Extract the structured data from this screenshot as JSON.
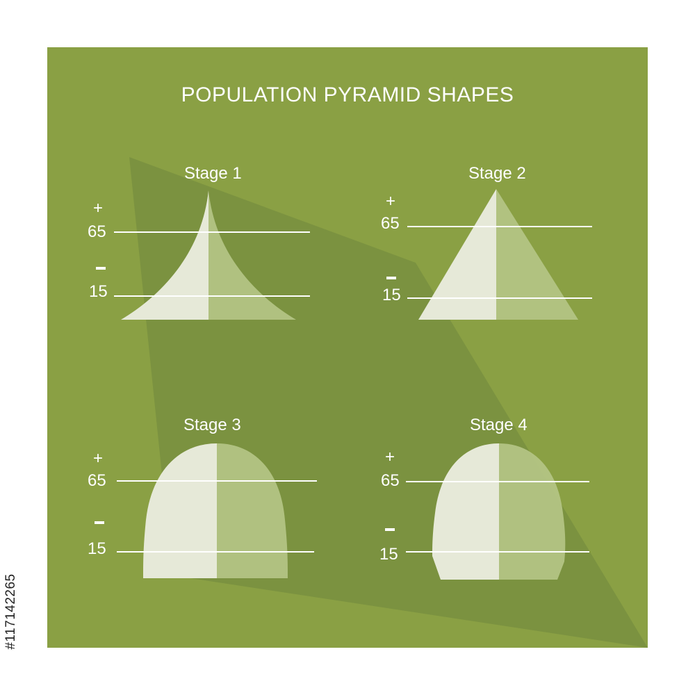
{
  "title": "POPULATION PYRAMID SHAPES",
  "stock_id": "#117142265",
  "colors": {
    "panel": "#8aa044",
    "shadow": "#7a9140",
    "left_half": "#e6e9d8",
    "right_half": "#b3c484",
    "line": "#ffffff"
  },
  "stages": [
    {
      "label": "Stage 1",
      "plus": "+",
      "upper": "65",
      "lower": "15"
    },
    {
      "label": "Stage 2",
      "plus": "+",
      "upper": "65",
      "lower": "15"
    },
    {
      "label": "Stage 3",
      "plus": "+",
      "upper": "65",
      "lower": "15"
    },
    {
      "label": "Stage 4",
      "plus": "+",
      "upper": "65",
      "lower": "15"
    }
  ]
}
